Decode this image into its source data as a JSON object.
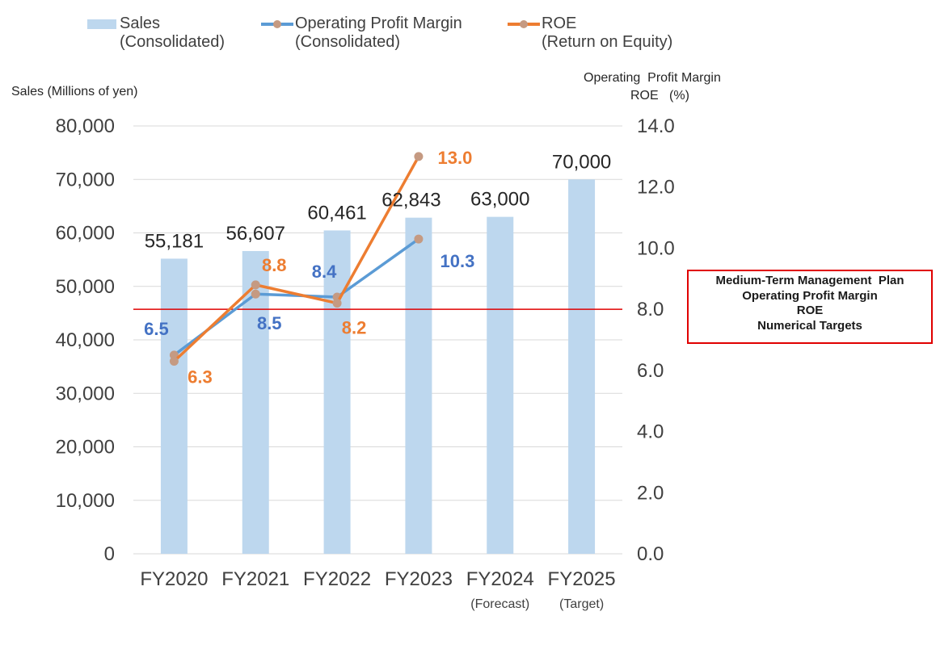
{
  "legend": {
    "sales": "Sales\n(Consolidated)",
    "opm": "Operating Profit Margin\n(Consolidated)",
    "roe": "ROE\n(Return on Equity)"
  },
  "axes": {
    "left_title": "Sales (Millions of yen)",
    "right_title_line1": "Operating  Profit Margin",
    "right_title_line2": "ROE   (%)"
  },
  "plan_box": {
    "line1": "Medium-Term Management  Plan",
    "line2": "Operating Profit Margin",
    "line3": "ROE",
    "line4": "Numerical Targets"
  },
  "colors": {
    "sales_bar": "#bdd7ee",
    "opm_line": "#5b9bd5",
    "opm_label": "#4472c4",
    "roe_line": "#ed7d31",
    "marker": "#c59a82",
    "target_line": "#e00000",
    "grid": "#d9d9d9"
  },
  "chart_data": {
    "type": "bar",
    "categories": [
      "FY2020",
      "FY2021",
      "FY2022",
      "FY2023",
      "FY2024",
      "FY2025"
    ],
    "category_notes": [
      "",
      "",
      "",
      "",
      "(Forecast)",
      "(Target)"
    ],
    "left_axis": {
      "min": 0,
      "max": 80000,
      "ticks": [
        "0",
        "10,000",
        "20,000",
        "30,000",
        "40,000",
        "50,000",
        "60,000",
        "70,000",
        "80,000"
      ]
    },
    "right_axis": {
      "min": 0,
      "max": 14,
      "ticks": [
        "0.0",
        "2.0",
        "4.0",
        "6.0",
        "8.0",
        "10.0",
        "12.0",
        "14.0"
      ]
    },
    "series": [
      {
        "name": "Sales (Consolidated)",
        "type": "bar",
        "axis": "left",
        "values": [
          55181,
          56607,
          60461,
          62843,
          63000,
          70000
        ],
        "labels": [
          "55,181",
          "56,607",
          "60,461",
          "62,843",
          "63,000",
          "70,000"
        ]
      },
      {
        "name": "Operating Profit Margin (Consolidated)",
        "type": "line",
        "axis": "right",
        "values": [
          6.5,
          8.5,
          8.4,
          10.3,
          null,
          null
        ],
        "labels": [
          "6.5",
          "8.5",
          "8.4",
          "10.3",
          "",
          ""
        ]
      },
      {
        "name": "ROE (Return on Equity)",
        "type": "line",
        "axis": "right",
        "values": [
          6.3,
          8.8,
          8.2,
          13.0,
          null,
          null
        ],
        "labels": [
          "6.3",
          "8.8",
          "8.2",
          "13.0",
          "",
          ""
        ]
      }
    ],
    "target_line": {
      "axis": "right",
      "value": 8.0
    },
    "grid": true,
    "legend_position": "top"
  }
}
